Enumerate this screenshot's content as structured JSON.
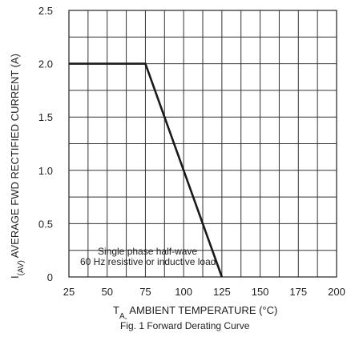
{
  "chart_data": {
    "type": "line",
    "caption": "Fig. 1  Forward Derating Curve",
    "x_axis": {
      "label_symbol": "T",
      "label_subscript": "A,",
      "label_text": " AMBIENT TEMPERATURE (°C)",
      "range": [
        25,
        200
      ],
      "ticks": [
        "25",
        "50",
        "75",
        "100",
        "125",
        "150",
        "175",
        "200"
      ]
    },
    "y_axis": {
      "label_symbol": "I",
      "label_subscript": "(AV)",
      "label_text": " AVERAGE FWD RECTIFIED CURRENT (A)",
      "range": [
        0,
        2.5
      ],
      "ticks": [
        "0",
        "0.5",
        "1.0",
        "1.5",
        "2.0",
        "2.5"
      ]
    },
    "grid": true,
    "series": [
      {
        "x": [
          25,
          75,
          125
        ],
        "y": [
          2.0,
          2.0,
          0
        ]
      }
    ],
    "annotation": {
      "line1": "Single phase half-wave",
      "line2": "60 Hz resistive or inductive load"
    },
    "colors": {
      "line": "#1a1a1a",
      "grid": "#333333"
    }
  }
}
